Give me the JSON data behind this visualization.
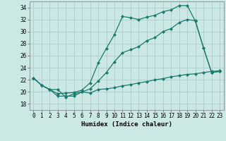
{
  "xlabel": "Humidex (Indice chaleur)",
  "bg_color": "#cce8e5",
  "line_color": "#1a7a6e",
  "grid_color": "#aaccca",
  "xlim": [
    -0.5,
    23.5
  ],
  "ylim": [
    17,
    35
  ],
  "yticks": [
    18,
    20,
    22,
    24,
    26,
    28,
    30,
    32,
    34
  ],
  "xticks": [
    0,
    1,
    2,
    3,
    4,
    5,
    6,
    7,
    8,
    9,
    10,
    11,
    12,
    13,
    14,
    15,
    16,
    17,
    18,
    19,
    20,
    21,
    22,
    23
  ],
  "series": [
    {
      "x": [
        0,
        1,
        2,
        3,
        4,
        5,
        6,
        7,
        8,
        9,
        10,
        11,
        12,
        13,
        14,
        15,
        16,
        17,
        18,
        19,
        20,
        21,
        22,
        23
      ],
      "y": [
        22.3,
        21.1,
        20.4,
        19.7,
        19.8,
        19.9,
        20.3,
        21.5,
        24.8,
        27.2,
        29.5,
        32.5,
        32.3,
        32.0,
        32.4,
        32.7,
        33.3,
        33.6,
        34.3,
        34.3,
        31.7,
        27.3,
        23.2,
        23.4
      ]
    },
    {
      "x": [
        0,
        1,
        2,
        3,
        4,
        5,
        6,
        7,
        8,
        9,
        10,
        11,
        12,
        13,
        14,
        15,
        16,
        17,
        18,
        19,
        20,
        21,
        22,
        23
      ],
      "y": [
        22.3,
        21.1,
        20.4,
        19.3,
        19.3,
        19.3,
        20.0,
        20.5,
        21.8,
        23.2,
        25.0,
        26.5,
        27.0,
        27.5,
        28.5,
        29.0,
        30.0,
        30.5,
        31.5,
        32.0,
        31.8,
        27.3,
        23.2,
        23.4
      ]
    },
    {
      "x": [
        0,
        1,
        2,
        3,
        4,
        5,
        6,
        7,
        8,
        9,
        10,
        11,
        12,
        13,
        14,
        15,
        16,
        17,
        18,
        19,
        20,
        21,
        22,
        23
      ],
      "y": [
        22.3,
        21.1,
        20.4,
        20.4,
        19.1,
        19.7,
        20.0,
        19.8,
        20.4,
        20.5,
        20.7,
        21.0,
        21.2,
        21.5,
        21.7,
        22.0,
        22.2,
        22.5,
        22.7,
        22.9,
        23.0,
        23.2,
        23.4,
        23.5
      ]
    }
  ]
}
